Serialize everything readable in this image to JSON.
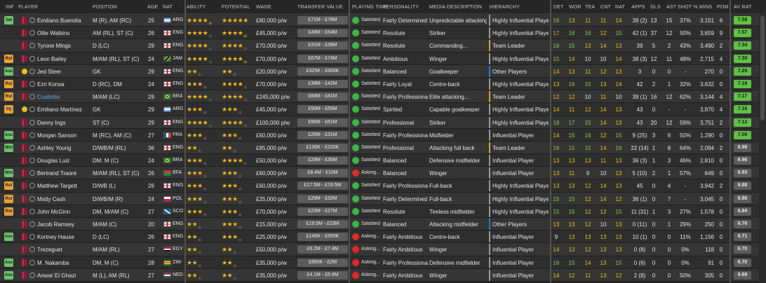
{
  "columns": {
    "inf": "INF",
    "player": "PLAYER",
    "position": "POSITION",
    "age": "AGE",
    "nat": "NAT",
    "ability": "ABILITY",
    "potential": "POTENTIAL",
    "wage": "WAGE",
    "transfer_value": "TRANSFER VALUE",
    "playing_time": "PLAYING TIME",
    "personality": "PERSONALITY",
    "media_description": "MEDIA DESCRIPTION",
    "hierarchy": "HIERARCHY",
    "det": "DET",
    "wor": "WOR",
    "tea": "TEA",
    "cnt": "CNT",
    "natr": "NAT",
    "apps": "APPS",
    "gls": "GLS",
    "ast": "AST",
    "shot_pct": "SHOT %",
    "mins": "MINS",
    "pom": "POM",
    "av_rat": "AV RAT"
  },
  "colors": {
    "green_attr": "#7fd34e",
    "yellow_attr": "#e9c41c",
    "accent_gold": "#f0b81c"
  },
  "players": [
    {
      "inf": "Set",
      "inf_color": "#6fc36d",
      "face": false,
      "name": "Emiliano Buendía",
      "position": "M (R), AM (RC)",
      "age": "25",
      "nat_code": "ARG",
      "flag": "arg",
      "ability": 4.5,
      "potential": 5,
      "wage": "£80,000 p/w",
      "tv": "£71M - £78M",
      "pt": "Satisfied",
      "pt_type": "sat",
      "personality": "Fairly Determined",
      "media": "Unpredictable attacking...",
      "hierarchy": "Highly Influential Player",
      "hier": "hi",
      "det": "16",
      "wor": "13",
      "tea": "11",
      "cnt": "11",
      "natr": "14",
      "apps": "39 (2)",
      "gls": "13",
      "ast": "15",
      "shot": "37%",
      "mins": "3,151",
      "pom": "6",
      "avr": "7.58",
      "avr_color": "#60c23f"
    },
    {
      "inf": "",
      "inf_color": "",
      "face": false,
      "name": "Ollie Watkins",
      "position": "AM (RL), ST (C)",
      "age": "26",
      "nat_code": "ENG",
      "flag": "eng",
      "ability": 4,
      "potential": 4.5,
      "wage": "£45,000 p/w",
      "tv": "£49M - £54M",
      "pt": "Satisfied",
      "pt_type": "sat",
      "personality": "Resolute",
      "media": "Striker",
      "hierarchy": "Highly Influential Player",
      "hier": "hi",
      "det": "17",
      "wor": "16",
      "tea": "16",
      "cnt": "12",
      "natr": "15",
      "apps": "42 (1)",
      "gls": "37",
      "ast": "12",
      "shot": "50%",
      "mins": "3,659",
      "pom": "9",
      "avr": "7.57",
      "avr_color": "#60c23f"
    },
    {
      "inf": "",
      "inf_color": "",
      "face": false,
      "name": "Tyrone Mings",
      "position": "D (LC)",
      "age": "29",
      "nat_code": "ENG",
      "flag": "eng",
      "ability": 4,
      "potential": 4,
      "wage": "£70,000 p/w",
      "tv": "£31M - £39M",
      "pt": "Satisfied",
      "pt_type": "sat",
      "personality": "Resolute",
      "media": "Commanding...",
      "hierarchy": "Team Leader",
      "hier": "tl",
      "det": "16",
      "wor": "15",
      "tea": "13",
      "cnt": "14",
      "natr": "13",
      "apps": "39",
      "gls": "5",
      "ast": "2",
      "shot": "43%",
      "mins": "3,490",
      "pom": "2",
      "avr": "7.34",
      "avr_color": "#5fbf46"
    },
    {
      "inf": "Rst",
      "inf_color": "#e6a23a",
      "face": false,
      "name": "Leon Bailey",
      "position": "M/AM (RL), ST (C)",
      "age": "24",
      "nat_code": "JAM",
      "flag": "jam",
      "ability": 4,
      "potential": 4.5,
      "wage": "£70,000 p/w",
      "tv": "£67M - £74M",
      "pt": "Satisfied",
      "pt_type": "sat",
      "personality": "Ambitious",
      "media": "Winger",
      "hierarchy": "Highly Influential Player",
      "hier": "hi",
      "det": "15",
      "wor": "14",
      "tea": "10",
      "cnt": "10",
      "natr": "14",
      "apps": "38 (3)",
      "gls": "12",
      "ast": "11",
      "shot": "48%",
      "mins": "2,715",
      "pom": "4",
      "avr": "7.30",
      "avr_color": "#5fbf46"
    },
    {
      "inf": "Ass",
      "inf_color": "#6fc36d",
      "face": true,
      "name": "Jed Steer",
      "position": "GK",
      "age": "29",
      "nat_code": "ENG",
      "flag": "eng",
      "ability": 2,
      "potential": 2,
      "wage": "£20,000 p/w",
      "tv": "£325K - £500K",
      "pt": "Satisfied",
      "pt_type": "sat",
      "personality": "Balanced",
      "media": "Goalkeeper",
      "hierarchy": "Other Players",
      "hier": "op",
      "det": "14",
      "wor": "13",
      "tea": "11",
      "cnt": "12",
      "natr": "13",
      "apps": "3",
      "gls": "0",
      "ast": "0",
      "shot": "-",
      "mins": "270",
      "pom": "0",
      "avr": "7.29",
      "avr_color": "#5fbf46"
    },
    {
      "inf": "Rst",
      "inf_color": "#e6a23a",
      "face": false,
      "name": "Ezri Konsa",
      "position": "D (RC), DM",
      "age": "24",
      "nat_code": "ENG",
      "flag": "eng",
      "ability": 3.5,
      "potential": 4,
      "wage": "£70,000 p/w",
      "tv": "£38M - £42M",
      "pt": "Satisfied",
      "pt_type": "sat",
      "personality": "Fairly Loyal",
      "media": "Centre-back",
      "hierarchy": "Highly Influential Player",
      "hier": "hi",
      "det": "13",
      "wor": "16",
      "tea": "15",
      "cnt": "13",
      "natr": "14",
      "apps": "42",
      "gls": "2",
      "ast": "1",
      "shot": "32%",
      "mins": "3,632",
      "pom": "0",
      "avr": "7.18",
      "avr_color": "#5fbf46"
    },
    {
      "inf": "Rst",
      "inf_color": "#e6a23a",
      "face": false,
      "name": "Coutinho",
      "name_color": "#6fb0e8",
      "position": "M/AM (LC)",
      "age": "29",
      "nat_code": "BRA",
      "flag": "bra",
      "ability": 4,
      "potential": 4,
      "wage": "£245,000 p/w",
      "tv": "£68M - £81M",
      "pt": "Satisfied",
      "pt_type": "sat",
      "personality": "Fairly Professional",
      "media": "Elite attacking...",
      "hierarchy": "Team Leader",
      "hier": "tl",
      "det": "12",
      "wor": "12",
      "tea": "10",
      "cnt": "11",
      "natr": "10",
      "apps": "39 (1)",
      "gls": "16",
      "ast": "12",
      "shot": "62%",
      "mins": "3,144",
      "pom": "4",
      "avr": "7.17",
      "avr_color": "#5fbf46"
    },
    {
      "inf": "Inj",
      "inf_color": "#e6a23a",
      "face": true,
      "name": "Emiliano Martínez",
      "position": "GK",
      "age": "29",
      "nat_code": "ARG",
      "flag": "arg",
      "ability": 3.5,
      "potential": 3.5,
      "wage": "£45,000 p/w",
      "tv": "£50M - £55M",
      "pt": "Satisfied",
      "pt_type": "sat",
      "personality": "Spirited",
      "media": "Capable goalkeeper",
      "hierarchy": "Highly Influential Player",
      "hier": "hi",
      "det": "14",
      "wor": "11",
      "tea": "12",
      "cnt": "14",
      "natr": "13",
      "apps": "43",
      "gls": "0",
      "ast": "-",
      "shot": "-",
      "mins": "3,870",
      "pom": "4",
      "avr": "7.16",
      "avr_color": "#5fbf46"
    },
    {
      "inf": "",
      "inf_color": "",
      "face": false,
      "name": "Danny Ings",
      "position": "ST (C)",
      "age": "29",
      "nat_code": "ENG",
      "flag": "eng",
      "ability": 4,
      "potential": 4,
      "wage": "£100,000 p/w",
      "tv": "£56M - £61M",
      "pt": "Satisfied",
      "pt_type": "sat",
      "personality": "Professional",
      "media": "Striker",
      "hierarchy": "Highly Influential Player",
      "hier": "hi",
      "det": "18",
      "wor": "17",
      "tea": "15",
      "cnt": "14",
      "natr": "13",
      "apps": "43",
      "gls": "20",
      "ast": "12",
      "shot": "59%",
      "mins": "3,751",
      "pom": "2",
      "avr": "7.12",
      "avr_color": "#5fbf46"
    },
    {
      "inf": "Ass",
      "inf_color": "#6fc36d",
      "face": false,
      "name": "Morgan Sanson",
      "position": "M (RC), AM (C)",
      "age": "27",
      "nat_code": "FRA",
      "flag": "fra",
      "ability": 3.5,
      "potential": 3.5,
      "wage": "£60,000 p/w",
      "tv": "£26M - £31M",
      "pt": "Satisfied",
      "pt_type": "sat",
      "personality": "Fairly Professional",
      "media": "Midfielder",
      "hierarchy": "Influential Player",
      "hier": "ip",
      "det": "14",
      "wor": "15",
      "tea": "16",
      "cnt": "12",
      "natr": "15",
      "apps": "9 (25)",
      "gls": "3",
      "ast": "6",
      "shot": "50%",
      "mins": "1,290",
      "pom": "0",
      "avr": "7.00",
      "avr_color": "#5fbf46"
    },
    {
      "inf": "Wnt",
      "inf_color": "#6fc36d",
      "face": false,
      "name": "Ashley Young",
      "position": "D/WB/M (RL)",
      "age": "36",
      "nat_code": "ENG",
      "flag": "eng",
      "ability": 2.5,
      "potential": 2.5,
      "wage": "£85,000 p/w",
      "tv": "£130K - £220K",
      "pt": "Satisfied",
      "pt_type": "sat",
      "personality": "Professional",
      "media": "Attacking full back",
      "hierarchy": "Team Leader",
      "hier": "tl",
      "det": "16",
      "wor": "15",
      "tea": "15",
      "cnt": "14",
      "natr": "16",
      "apps": "22 (14)",
      "gls": "1",
      "ast": "8",
      "shot": "64%",
      "mins": "2,094",
      "pom": "2",
      "avr": "6.98",
      "avr_color": "#5c5c5c"
    },
    {
      "inf": "",
      "inf_color": "",
      "face": false,
      "name": "Douglas Luiz",
      "position": "DM, M (C)",
      "age": "24",
      "nat_code": "BRA",
      "flag": "bra",
      "ability": 3.5,
      "potential": 4,
      "wage": "£50,000 p/w",
      "tv": "£29M - £35M",
      "pt": "Satisfied",
      "pt_type": "sat",
      "personality": "Balanced",
      "media": "Defensive midfielder",
      "hierarchy": "Influential Player",
      "hier": "ip",
      "det": "13",
      "wor": "13",
      "tea": "13",
      "cnt": "11",
      "natr": "13",
      "apps": "36 (3)",
      "gls": "1",
      "ast": "3",
      "shot": "46%",
      "mins": "2,810",
      "pom": "0",
      "avr": "6.96",
      "avr_color": "#5c5c5c"
    },
    {
      "inf": "Wnt",
      "inf_color": "#6fc36d",
      "face": false,
      "name": "Bertrand Traoré",
      "position": "M/AM (RL), ST (C)",
      "age": "26",
      "nat_code": "BFA",
      "flag": "bfa",
      "ability": 3.5,
      "potential": 3.5,
      "wage": "£60,000 p/w",
      "tv": "£8.4M - £10M",
      "pt": "Asking...",
      "pt_type": "ask",
      "personality": "Balanced",
      "media": "Winger",
      "hierarchy": "Influential Player",
      "hier": "ip",
      "det": "13",
      "wor": "11",
      "tea": "9",
      "cnt": "10",
      "natr": "13",
      "apps": "5 (10)",
      "gls": "2",
      "ast": "1",
      "shot": "57%",
      "mins": "649",
      "pom": "0",
      "avr": "6.93",
      "avr_color": "#5c5c5c"
    },
    {
      "inf": "Rst",
      "inf_color": "#e6a23a",
      "face": false,
      "name": "Matthew Targett",
      "position": "D/WB (L)",
      "age": "26",
      "nat_code": "ENG",
      "flag": "eng",
      "ability": 3,
      "potential": 3,
      "wage": "£60,000 p/w",
      "tv": "£17.5M - £19.5M",
      "pt": "Satisfied",
      "pt_type": "sat",
      "personality": "Fairly Professional",
      "media": "Full-back",
      "hierarchy": "Highly Influential Player",
      "hier": "hi",
      "det": "13",
      "wor": "13",
      "tea": "12",
      "cnt": "14",
      "natr": "13",
      "apps": "45",
      "gls": "0",
      "ast": "4",
      "shot": "-",
      "mins": "3,942",
      "pom": "2",
      "avr": "6.88",
      "avr_color": "#5c5c5c"
    },
    {
      "inf": "Rst",
      "inf_color": "#e6a23a",
      "face": false,
      "name": "Matty Cash",
      "position": "D/WB/M (R)",
      "age": "24",
      "nat_code": "POL",
      "flag": "pol",
      "ability": 3,
      "potential": 3.5,
      "wage": "£25,000 p/w",
      "tv": "£29M - £32M",
      "pt": "Satisfied",
      "pt_type": "sat",
      "personality": "Fairly Determined",
      "media": "Full-back",
      "hierarchy": "Highly Influential Player",
      "hier": "hi",
      "det": "15",
      "wor": "15",
      "tea": "12",
      "cnt": "14",
      "natr": "12",
      "apps": "36 (1)",
      "gls": "0",
      "ast": "7",
      "shot": "-",
      "mins": "3,045",
      "pom": "0",
      "avr": "6.86",
      "avr_color": "#5c5c5c"
    },
    {
      "inf": "Rst",
      "inf_color": "#e6a23a",
      "face": false,
      "name": "John McGinn",
      "position": "DM, M/AM (C)",
      "age": "27",
      "nat_code": "SCO",
      "flag": "sco",
      "ability": 3.5,
      "potential": 3.5,
      "wage": "£70,000 p/w",
      "tv": "£23M - £27M",
      "pt": "Satisfied",
      "pt_type": "sat",
      "personality": "Resolute",
      "media": "Tireless midfielder",
      "hierarchy": "Highly Influential Player",
      "hier": "hi",
      "det": "15",
      "wor": "15",
      "tea": "12",
      "cnt": "12",
      "natr": "15",
      "apps": "11 (31)",
      "gls": "1",
      "ast": "3",
      "shot": "27%",
      "mins": "1,578",
      "pom": "0",
      "avr": "6.84",
      "avr_color": "#5c5c5c"
    },
    {
      "inf": "",
      "inf_color": "",
      "face": false,
      "name": "Jacob Ramsey",
      "position": "M/AM (C)",
      "age": "20",
      "nat_code": "ENG",
      "flag": "eng",
      "ability": 2.5,
      "potential": 3.5,
      "wage": "£15,000 p/w",
      "tv": "£19.5M - £23M",
      "pt": "Satisfied",
      "pt_type": "sat",
      "personality": "Balanced",
      "media": "Attacking midfielder",
      "hierarchy": "Other Players",
      "hier": "op",
      "det": "13",
      "wor": "13",
      "tea": "12",
      "cnt": "10",
      "natr": "13",
      "apps": "0 (11)",
      "gls": "0",
      "ast": "1",
      "shot": "29%",
      "mins": "250",
      "pom": "0",
      "avr": "6.76",
      "avr_color": "#5c5c5c"
    },
    {
      "inf": "Ass",
      "inf_color": "#6fc36d",
      "face": false,
      "name": "Kortney Hause",
      "position": "D (LC)",
      "age": "26",
      "nat_code": "ENG",
      "flag": "eng",
      "ability": 2.5,
      "potential": 3,
      "wage": "£25,000 p/w",
      "tv": "£140K - £550K",
      "pt": "Asking...",
      "pt_type": "ask",
      "personality": "Fairly Ambitious",
      "media": "Centre-back",
      "hierarchy": "Influential Player",
      "hier": "ip",
      "det": "9",
      "wor": "13",
      "tea": "13",
      "cnt": "13",
      "natr": "13",
      "apps": "10 (1)",
      "gls": "0",
      "ast": "0",
      "shot": "11%",
      "mins": "1,156",
      "pom": "0",
      "avr": "6.71",
      "avr_color": "#5c5c5c"
    },
    {
      "inf": "",
      "inf_color": "",
      "face": false,
      "name": "Trezeguet",
      "position": "M/AM (RL)",
      "age": "27",
      "nat_code": "EGY",
      "flag": "egy",
      "ability": 2.5,
      "potential": 2.5,
      "wage": "£50,000 p/w",
      "tv": "£6.2M - £7.4M",
      "pt": "Asking...",
      "pt_type": "ask",
      "personality": "Fairly Ambitious",
      "media": "Winger",
      "hierarchy": "Influential Player",
      "hier": "ip",
      "det": "14",
      "wor": "13",
      "tea": "12",
      "cnt": "13",
      "natr": "13",
      "apps": "0 (8)",
      "gls": "0",
      "ast": "0",
      "shot": "0%",
      "mins": "118",
      "pom": "0",
      "avr": "6.70",
      "avr_color": "#5c5c5c"
    },
    {
      "inf": "Ass",
      "inf_color": "#6fc36d",
      "face": false,
      "name": "M. Nakamba",
      "position": "DM, M (C)",
      "age": "28",
      "nat_code": "ZIM",
      "flag": "zim",
      "ability": 2.5,
      "potential": 2.5,
      "wage": "£35,000 p/w",
      "tv": "£950K - £2M",
      "pt": "Asking...",
      "pt_type": "ask",
      "personality": "Fairly Professional",
      "media": "Defensive midfielder",
      "hierarchy": "Influential Player",
      "hier": "ip",
      "det": "16",
      "wor": "15",
      "tea": "14",
      "cnt": "13",
      "natr": "15",
      "apps": "0 (6)",
      "gls": "0",
      "ast": "0",
      "shot": "0%",
      "mins": "91",
      "pom": "0",
      "avr": "6.70",
      "avr_color": "#5c5c5c"
    },
    {
      "inf": "Ass",
      "inf_color": "#6fc36d",
      "face": false,
      "name": "Anwar El Ghazi",
      "position": "M (L), AM (RL)",
      "age": "27",
      "nat_code": "NED",
      "flag": "ned",
      "ability": 2,
      "potential": 2,
      "wage": "£35,000 p/w",
      "tv": "£4.1M - £5.6M",
      "pt": "Asking...",
      "pt_type": "ask",
      "personality": "Fairly Ambitious",
      "media": "Winger",
      "hierarchy": "Influential Player",
      "hier": "ip",
      "det": "14",
      "wor": "12",
      "tea": "11",
      "cnt": "13",
      "natr": "12",
      "apps": "2 (8)",
      "gls": "0",
      "ast": "0",
      "shot": "50%",
      "mins": "305",
      "pom": "0",
      "avr": "6.69",
      "avr_color": "#5c5c5c"
    }
  ]
}
